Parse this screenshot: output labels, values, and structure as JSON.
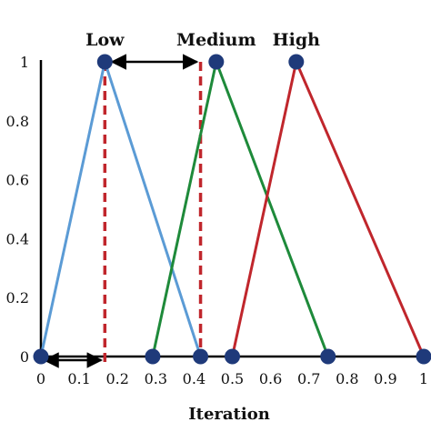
{
  "chart_data": {
    "type": "line",
    "title": "",
    "xlabel": "Iteration",
    "ylabel": "",
    "xlim": [
      0,
      1
    ],
    "ylim": [
      0,
      1
    ],
    "grid": false,
    "legend": "none",
    "x_ticks": [
      "0",
      "0.1",
      "0.2",
      "0.3",
      "0.4",
      "0.5",
      "0.6",
      "0.7",
      "0.8",
      "0.9",
      "1"
    ],
    "y_ticks": [
      "0",
      "0.2",
      "0.4",
      "0.6",
      "0.8",
      "1"
    ],
    "series": [
      {
        "name": "Low",
        "color": "#5b9bd5",
        "points": [
          [
            0,
            0
          ],
          [
            0.167,
            1
          ],
          [
            0.417,
            0
          ]
        ]
      },
      {
        "name": "Medium",
        "color": "#1e8a3a",
        "points": [
          [
            0.292,
            0
          ],
          [
            0.458,
            1
          ],
          [
            0.75,
            0
          ]
        ]
      },
      {
        "name": "High",
        "color": "#c0262c",
        "points": [
          [
            0.5,
            0
          ],
          [
            0.667,
            1
          ],
          [
            1.0,
            0
          ]
        ]
      }
    ],
    "marker_color": "#1f3a7a",
    "reference_lines": [
      {
        "x": 0.167,
        "style": "dashed",
        "color": "#c0262c"
      },
      {
        "x": 0.417,
        "style": "dashed",
        "color": "#c0262c"
      }
    ],
    "arrows": [
      {
        "from": [
          0.167,
          1
        ],
        "to": [
          0.417,
          1
        ],
        "style": "double-headed"
      },
      {
        "from": [
          0,
          0
        ],
        "to": [
          0.167,
          0
        ],
        "style": "double-headed"
      }
    ]
  }
}
